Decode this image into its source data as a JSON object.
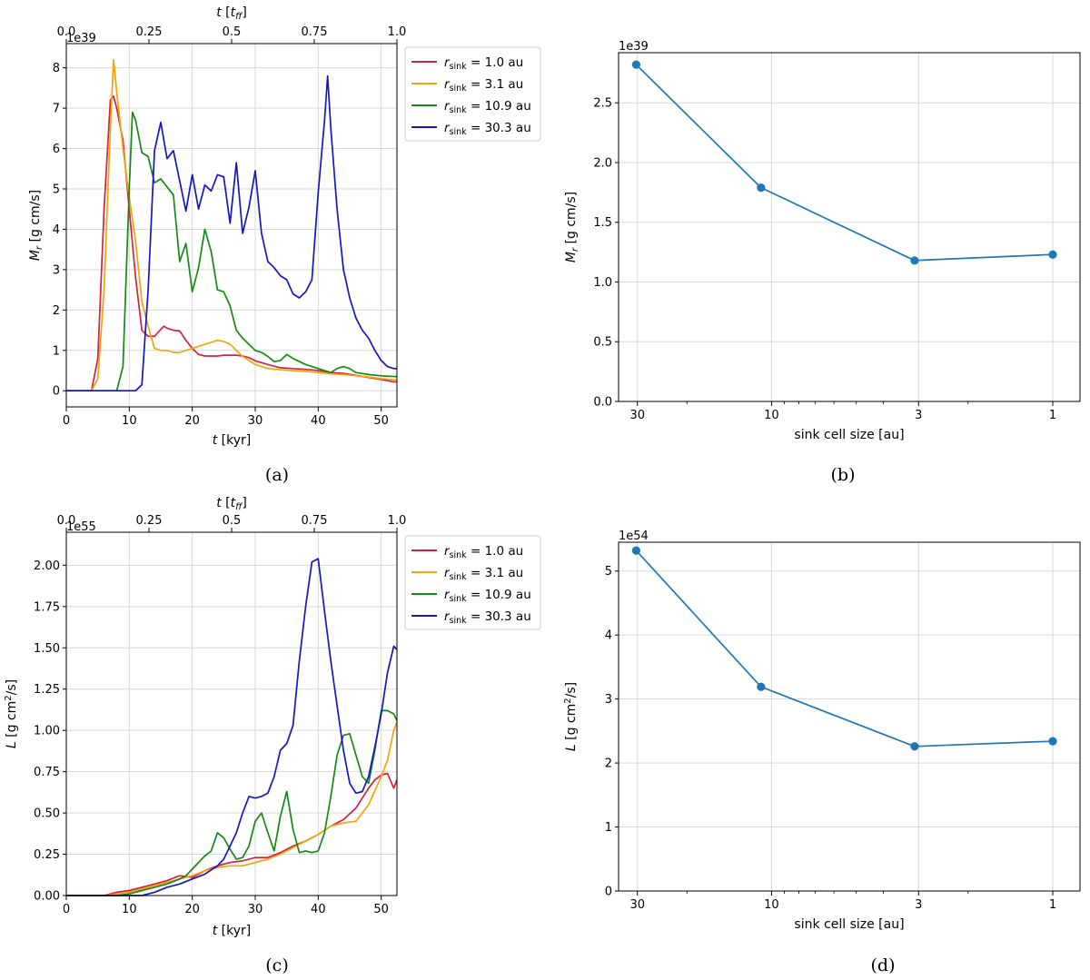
{
  "chart_data": [
    {
      "panel": "a",
      "type": "line",
      "caption": "(a)",
      "xlabel": "t [kyr]",
      "ylabel": "Mr [g cm/s]",
      "top_xlabel": "t [tff]",
      "offset_text": "1e39",
      "xlim": [
        0,
        52.5
      ],
      "ylim": [
        -0.4,
        8.6
      ],
      "top_xlim": [
        0,
        1
      ],
      "xticks": [
        0,
        10,
        20,
        30,
        40,
        50
      ],
      "yticks": [
        0,
        1,
        2,
        3,
        4,
        5,
        6,
        7,
        8
      ],
      "top_ticks": [
        "0.0",
        "0.25",
        "0.5",
        "0.75",
        "1.0"
      ],
      "legend_position": "outside-right",
      "series": [
        {
          "name": "r_sink = 1.0 au",
          "label_sym": "r",
          "label_sub": "sink",
          "label_rest": " = 1.0 au",
          "color": "#d62040",
          "x": [
            0,
            4,
            5,
            6,
            7,
            7.5,
            8,
            9,
            10,
            11,
            12,
            13,
            14,
            15,
            15.5,
            16,
            17,
            18,
            19,
            20,
            21,
            22,
            23,
            24,
            25,
            26,
            27,
            28,
            29,
            30,
            32,
            34,
            36,
            38,
            40,
            42,
            44,
            46,
            48,
            50,
            52,
            52.5
          ],
          "y": [
            0,
            0,
            0.8,
            4.5,
            7.2,
            7.3,
            7.0,
            6.2,
            4.5,
            2.8,
            1.5,
            1.35,
            1.35,
            1.52,
            1.6,
            1.55,
            1.5,
            1.48,
            1.25,
            1.05,
            0.9,
            0.86,
            0.86,
            0.86,
            0.88,
            0.88,
            0.88,
            0.86,
            0.82,
            0.74,
            0.65,
            0.57,
            0.55,
            0.53,
            0.5,
            0.45,
            0.43,
            0.38,
            0.33,
            0.28,
            0.22,
            0.22
          ]
        },
        {
          "name": "r_sink = 3.1 au",
          "label_sym": "r",
          "label_sub": "sink",
          "label_rest": " = 3.1 au",
          "color": "#f5a30a",
          "x": [
            0,
            4,
            5,
            6,
            7,
            7.5,
            8,
            9,
            10,
            11,
            12,
            13,
            14,
            15,
            16,
            17,
            18,
            19,
            20,
            21,
            22,
            23,
            24,
            25,
            26,
            27,
            28,
            29,
            30,
            32,
            34,
            36,
            38,
            40,
            42,
            44,
            46,
            48,
            50,
            52,
            52.5
          ],
          "y": [
            0,
            0,
            0.3,
            2.5,
            6.5,
            8.2,
            7.4,
            6.0,
            4.8,
            3.7,
            2.2,
            1.6,
            1.05,
            1.0,
            1.0,
            0.95,
            0.95,
            1.0,
            1.05,
            1.1,
            1.15,
            1.2,
            1.25,
            1.22,
            1.15,
            1.0,
            0.85,
            0.75,
            0.65,
            0.55,
            0.52,
            0.5,
            0.48,
            0.45,
            0.42,
            0.4,
            0.37,
            0.34,
            0.3,
            0.27,
            0.27
          ]
        },
        {
          "name": "r_sink = 10.9 au",
          "label_sym": "r",
          "label_sub": "sink",
          "label_rest": " = 10.9 au",
          "color": "#138a13",
          "x": [
            0,
            7,
            8,
            9,
            10,
            10.5,
            11,
            12,
            13,
            14,
            15,
            16,
            17,
            18,
            19,
            20,
            21,
            22,
            23,
            24,
            25,
            26,
            27,
            28,
            29,
            30,
            31,
            32,
            33,
            34,
            35,
            36,
            38,
            40,
            42,
            43,
            44,
            45,
            46,
            48,
            50,
            52.5
          ],
          "y": [
            0,
            0,
            0,
            0.6,
            5.0,
            6.9,
            6.7,
            5.9,
            5.8,
            5.15,
            5.25,
            5.05,
            4.85,
            3.2,
            3.65,
            2.45,
            3.05,
            4.0,
            3.45,
            2.5,
            2.45,
            2.1,
            1.5,
            1.3,
            1.15,
            1.0,
            0.95,
            0.85,
            0.72,
            0.75,
            0.9,
            0.8,
            0.65,
            0.55,
            0.45,
            0.55,
            0.6,
            0.55,
            0.45,
            0.4,
            0.37,
            0.35
          ]
        },
        {
          "name": "r_sink = 30.3 au",
          "label_sym": "r",
          "label_sub": "sink",
          "label_rest": " = 30.3 au",
          "color": "#1616c4",
          "x": [
            0,
            11,
            12,
            13,
            14,
            15,
            16,
            17,
            18,
            19,
            20,
            21,
            22,
            23,
            24,
            25,
            26,
            27,
            28,
            29,
            30,
            31,
            32,
            33,
            34,
            35,
            36,
            37,
            38,
            39,
            40,
            41,
            41.5,
            42,
            43,
            44,
            45,
            46,
            47,
            48,
            49,
            50,
            51,
            52,
            52.5
          ],
          "y": [
            0,
            0,
            0.15,
            2.5,
            5.95,
            6.65,
            5.75,
            5.95,
            5.2,
            4.45,
            5.35,
            4.5,
            5.1,
            4.95,
            5.35,
            5.3,
            4.15,
            5.65,
            3.9,
            4.55,
            5.45,
            3.9,
            3.2,
            3.05,
            2.85,
            2.75,
            2.4,
            2.3,
            2.45,
            2.75,
            4.9,
            6.7,
            7.8,
            6.5,
            4.5,
            3.0,
            2.3,
            1.8,
            1.5,
            1.3,
            1.0,
            0.75,
            0.6,
            0.55,
            0.55
          ]
        }
      ]
    },
    {
      "panel": "b",
      "type": "line",
      "caption": "(b)",
      "xlabel": "sink cell size [au]",
      "ylabel": "Mr [g cm/s]",
      "offset_text": "1e39",
      "x_scale": "log-reversed",
      "xlim": [
        35,
        0.8
      ],
      "ylim": [
        0,
        2.92
      ],
      "xtick_values": [
        30,
        10,
        3,
        1
      ],
      "xtick_labels": [
        "30",
        "10",
        "3",
        "1"
      ],
      "yticks": [
        "0.0",
        "0.5",
        "1.0",
        "1.5",
        "2.0",
        "2.5"
      ],
      "color": "#1f77b4",
      "series": [
        {
          "name": "Mr",
          "x": [
            30.3,
            10.9,
            3.1,
            1.0
          ],
          "y": [
            2.82,
            1.79,
            1.18,
            1.23
          ]
        }
      ]
    },
    {
      "panel": "c",
      "type": "line",
      "caption": "(c)",
      "xlabel": "t [kyr]",
      "ylabel": "L [g cm2/s]",
      "top_xlabel": "t [tff]",
      "offset_text": "1e55",
      "xlim": [
        0,
        52.5
      ],
      "ylim": [
        0,
        2.2
      ],
      "top_xlim": [
        0,
        1
      ],
      "xticks": [
        0,
        10,
        20,
        30,
        40,
        50
      ],
      "yticks": [
        "0.00",
        "0.25",
        "0.50",
        "0.75",
        "1.00",
        "1.25",
        "1.50",
        "1.75",
        "2.00"
      ],
      "top_ticks": [
        "0.0",
        "0.25",
        "0.5",
        "0.75",
        "1.0"
      ],
      "legend_position": "outside-right",
      "series": [
        {
          "name": "r_sink = 1.0 au",
          "label_sym": "r",
          "label_sub": "sink",
          "label_rest": " = 1.0 au",
          "color": "#d62040",
          "x": [
            0,
            6,
            8,
            10,
            12,
            14,
            16,
            18,
            20,
            22,
            24,
            26,
            28,
            30,
            32,
            34,
            36,
            38,
            40,
            42,
            44,
            46,
            48,
            49,
            50,
            51,
            52,
            52.5
          ],
          "y": [
            0,
            0,
            0.02,
            0.03,
            0.05,
            0.07,
            0.09,
            0.12,
            0.11,
            0.15,
            0.18,
            0.2,
            0.21,
            0.23,
            0.23,
            0.26,
            0.3,
            0.33,
            0.37,
            0.42,
            0.46,
            0.53,
            0.65,
            0.7,
            0.73,
            0.74,
            0.65,
            0.7
          ]
        },
        {
          "name": "r_sink = 3.1 au",
          "label_sym": "r",
          "label_sub": "sink",
          "label_rest": " = 3.1 au",
          "color": "#f5a30a",
          "x": [
            0,
            6,
            8,
            10,
            12,
            14,
            16,
            18,
            20,
            22,
            24,
            26,
            28,
            30,
            32,
            34,
            36,
            38,
            40,
            42,
            44,
            46,
            48,
            50,
            51,
            52,
            52.5
          ],
          "y": [
            0,
            0,
            0.01,
            0.02,
            0.04,
            0.06,
            0.08,
            0.1,
            0.12,
            0.15,
            0.17,
            0.18,
            0.18,
            0.2,
            0.22,
            0.25,
            0.29,
            0.33,
            0.37,
            0.42,
            0.44,
            0.45,
            0.55,
            0.72,
            0.82,
            1.0,
            1.05
          ]
        },
        {
          "name": "r_sink = 10.9 au",
          "label_sym": "r",
          "label_sub": "sink",
          "label_rest": " = 10.9 au",
          "color": "#138a13",
          "x": [
            0,
            8,
            10,
            12,
            14,
            16,
            18,
            19,
            20,
            21,
            22,
            23,
            24,
            25,
            26,
            27,
            28,
            29,
            30,
            31,
            32,
            33,
            34,
            35,
            36,
            37,
            38,
            39,
            40,
            41,
            42,
            43,
            44,
            45,
            46,
            47,
            48,
            49,
            50,
            51,
            52,
            52.5
          ],
          "y": [
            0,
            0,
            0.01,
            0.03,
            0.05,
            0.07,
            0.1,
            0.12,
            0.16,
            0.2,
            0.24,
            0.27,
            0.38,
            0.35,
            0.28,
            0.22,
            0.23,
            0.3,
            0.45,
            0.5,
            0.38,
            0.27,
            0.48,
            0.63,
            0.4,
            0.26,
            0.27,
            0.26,
            0.27,
            0.38,
            0.6,
            0.85,
            0.97,
            0.98,
            0.85,
            0.72,
            0.68,
            0.88,
            1.12,
            1.12,
            1.1,
            1.06
          ]
        },
        {
          "name": "r_sink = 30.3 au",
          "label_sym": "r",
          "label_sub": "sink",
          "label_rest": " = 30.3 au",
          "color": "#1616c4",
          "x": [
            0,
            12,
            14,
            16,
            18,
            20,
            22,
            24,
            25,
            26,
            27,
            28,
            29,
            30,
            31,
            32,
            33,
            34,
            35,
            36,
            37,
            38,
            39,
            40,
            41,
            42,
            43,
            44,
            45,
            46,
            47,
            48,
            49,
            50,
            51,
            52,
            52.5
          ],
          "y": [
            0,
            0,
            0.02,
            0.05,
            0.07,
            0.1,
            0.13,
            0.18,
            0.22,
            0.3,
            0.38,
            0.5,
            0.6,
            0.59,
            0.6,
            0.62,
            0.72,
            0.88,
            0.92,
            1.03,
            1.42,
            1.75,
            2.02,
            2.04,
            1.72,
            1.42,
            1.15,
            0.88,
            0.68,
            0.62,
            0.63,
            0.72,
            0.9,
            1.1,
            1.35,
            1.51,
            1.49
          ]
        }
      ]
    },
    {
      "panel": "d",
      "type": "line",
      "caption": "(d)",
      "xlabel": "sink cell size [au]",
      "ylabel": "L [g cm2/s]",
      "offset_text": "1e54",
      "x_scale": "log-reversed",
      "xlim": [
        35,
        0.8
      ],
      "ylim": [
        0,
        5.45
      ],
      "xtick_values": [
        30,
        10,
        3,
        1
      ],
      "xtick_labels": [
        "30",
        "10",
        "3",
        "1"
      ],
      "yticks": [
        "0",
        "1",
        "2",
        "3",
        "4",
        "5"
      ],
      "color": "#1f77b4",
      "series": [
        {
          "name": "L",
          "x": [
            30.3,
            10.9,
            3.1,
            1.0
          ],
          "y": [
            5.32,
            3.19,
            2.26,
            2.34
          ]
        }
      ]
    }
  ]
}
